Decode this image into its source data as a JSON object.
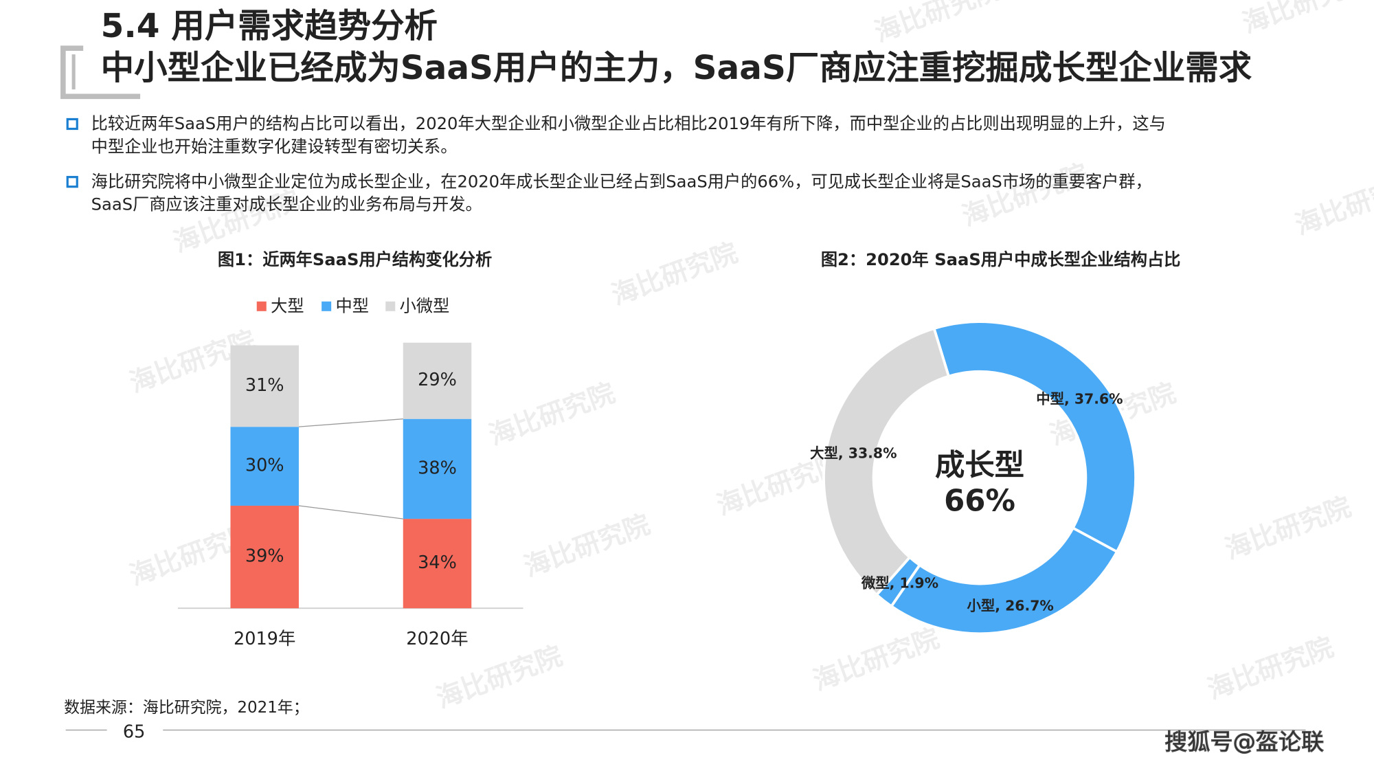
{
  "title": "5.4 用户需求趋势分析",
  "subtitle": "中小型企业已经成为SaaS用户的主力，SaaS厂商应注重挖掘成长型企业需求",
  "bullets": [
    [
      "比较近两年SaaS用户的结构占比可以看出，2020年大型企业和小微型企业占比相比2019年有所下降，而中型企业的占比则出现明显的上升，这与",
      "中型企业也开始注重数字化建设转型有密切关系。"
    ],
    [
      "海比研究院将中小微型企业定位为成长型企业，在2020年成长型企业已经占到SaaS用户的66%，可见成长型企业将是SaaS市场的重要客户群，",
      "SaaS厂商应该注重对成长型企业的业务布局与开发。"
    ]
  ],
  "source": "数据来源：海比研究院，2021年；",
  "page_number": "65",
  "watermark": "海比研究院",
  "footer_mark": "搜狐号@盔论联",
  "chart_data": [
    {
      "type": "stacked_bar",
      "title": "图1：近两年SaaS用户结构变化分析",
      "categories": [
        "2019年",
        "2020年"
      ],
      "series": [
        {
          "name": "大型",
          "color": "#f4695a",
          "values": [
            39,
            34
          ],
          "value_labels": [
            "39%",
            "34%"
          ]
        },
        {
          "name": "中型",
          "color": "#4aaaf5",
          "values": [
            30,
            38
          ],
          "value_labels": [
            "30%",
            "38%"
          ]
        },
        {
          "name": "小微型",
          "color": "#d9d9d9",
          "values": [
            31,
            29
          ],
          "value_labels": [
            "31%",
            "29%"
          ]
        }
      ]
    },
    {
      "type": "donut",
      "title": "图2：2020年 SaaS用户中成长型企业结构占比",
      "categories": [
        "中型",
        "小型",
        "微型",
        "大型"
      ],
      "values": [
        37.6,
        26.7,
        1.9,
        33.8
      ],
      "value_labels": [
        "中型, 37.6%",
        "小型, 26.7%",
        "微型, 1.9%",
        "大型, 33.8%"
      ],
      "colors": [
        "#4aaaf5",
        "#4aaaf5",
        "#4aaaf5",
        "#d9d9d9"
      ],
      "center_text": [
        "成长型",
        "66%"
      ]
    }
  ]
}
